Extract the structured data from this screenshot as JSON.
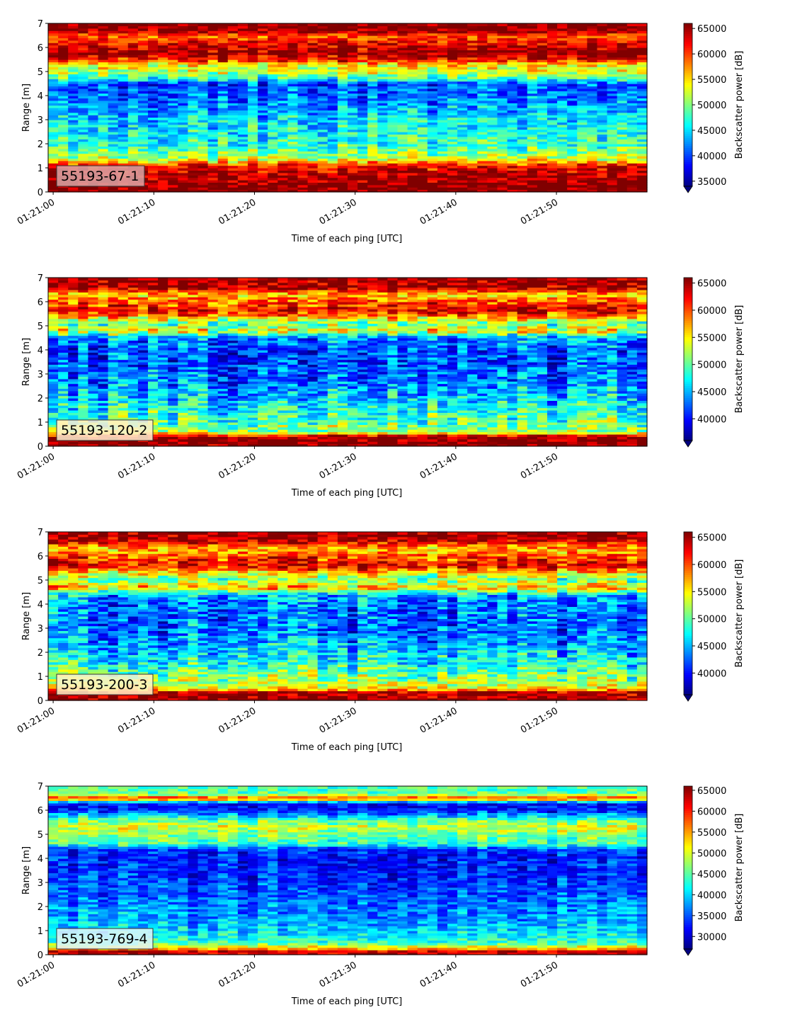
{
  "chart_data": [
    {
      "type": "heatmap",
      "panel_label": "55193-67-1",
      "xlabel": "Time of each ping [UTC]",
      "ylabel": "Range [m]",
      "x_ticks": [
        "01:21:00",
        "01:21:10",
        "01:21:20",
        "01:21:30",
        "01:21:40",
        "01:21:50"
      ],
      "x_range_seconds": [
        -0.5,
        59
      ],
      "ylim": [
        0,
        7
      ],
      "y_ticks": [
        0,
        1,
        2,
        3,
        4,
        5,
        6,
        7
      ],
      "colorbar": {
        "label": "Backscatter power [dB]",
        "vmin": 34000,
        "vmax": 66000,
        "ticks": [
          35000,
          40000,
          45000,
          50000,
          55000,
          60000,
          65000
        ],
        "extend": "min"
      },
      "profile": [
        [
          0.0,
          66000
        ],
        [
          0.2,
          66000
        ],
        [
          0.8,
          64000
        ],
        [
          1.1,
          62000
        ],
        [
          1.3,
          54000
        ],
        [
          1.6,
          50000
        ],
        [
          2.0,
          47000
        ],
        [
          2.5,
          46000
        ],
        [
          3.0,
          45000
        ],
        [
          3.5,
          43000
        ],
        [
          4.0,
          41000
        ],
        [
          4.5,
          40000
        ],
        [
          4.7,
          47000
        ],
        [
          5.0,
          52000
        ],
        [
          5.3,
          54000
        ],
        [
          5.5,
          62000
        ],
        [
          5.8,
          65500
        ],
        [
          6.2,
          62000
        ],
        [
          6.5,
          59000
        ],
        [
          6.7,
          65500
        ],
        [
          7.0,
          66000
        ]
      ],
      "label_bg": "#dca6a6",
      "noise": 5500
    },
    {
      "type": "heatmap",
      "panel_label": "55193-120-2",
      "xlabel": "Time of each ping [UTC]",
      "ylabel": "Range [m]",
      "x_ticks": [
        "01:21:00",
        "01:21:10",
        "01:21:20",
        "01:21:30",
        "01:21:40",
        "01:21:50"
      ],
      "x_range_seconds": [
        -0.5,
        59
      ],
      "ylim": [
        0,
        7
      ],
      "y_ticks": [
        0,
        1,
        2,
        3,
        4,
        5,
        6,
        7
      ],
      "colorbar": {
        "label": "Backscatter power [dB]",
        "vmin": 36000,
        "vmax": 66000,
        "ticks": [
          40000,
          45000,
          50000,
          55000,
          60000,
          65000
        ],
        "extend": "min"
      },
      "profile": [
        [
          0.0,
          66000
        ],
        [
          0.4,
          66000
        ],
        [
          0.6,
          52000
        ],
        [
          1.0,
          50000
        ],
        [
          1.5,
          48000
        ],
        [
          2.0,
          46000
        ],
        [
          2.5,
          44000
        ],
        [
          3.0,
          43000
        ],
        [
          3.5,
          42000
        ],
        [
          4.0,
          42000
        ],
        [
          4.5,
          44000
        ],
        [
          4.8,
          55000
        ],
        [
          5.1,
          50000
        ],
        [
          5.3,
          55000
        ],
        [
          5.6,
          63000
        ],
        [
          6.0,
          60000
        ],
        [
          6.3,
          56000
        ],
        [
          6.6,
          65000
        ],
        [
          7.0,
          65000
        ]
      ],
      "label_bg": "#fff0d0",
      "noise": 6000
    },
    {
      "type": "heatmap",
      "panel_label": "55193-200-3",
      "xlabel": "Time of each ping [UTC]",
      "ylabel": "Range [m]",
      "x_ticks": [
        "01:21:00",
        "01:21:10",
        "01:21:20",
        "01:21:30",
        "01:21:40",
        "01:21:50"
      ],
      "x_range_seconds": [
        -0.5,
        59
      ],
      "ylim": [
        0,
        7
      ],
      "y_ticks": [
        0,
        1,
        2,
        3,
        4,
        5,
        6,
        7
      ],
      "colorbar": {
        "label": "Backscatter power [dB]",
        "vmin": 36000,
        "vmax": 66000,
        "ticks": [
          40000,
          45000,
          50000,
          55000,
          60000,
          65000
        ],
        "extend": "min"
      },
      "profile": [
        [
          0.0,
          66000
        ],
        [
          0.35,
          64000
        ],
        [
          0.5,
          55000
        ],
        [
          1.0,
          51000
        ],
        [
          1.5,
          48000
        ],
        [
          2.0,
          46000
        ],
        [
          2.5,
          44000
        ],
        [
          3.0,
          43000
        ],
        [
          3.5,
          43000
        ],
        [
          4.0,
          43000
        ],
        [
          4.4,
          45000
        ],
        [
          4.7,
          57000
        ],
        [
          5.0,
          51000
        ],
        [
          5.3,
          55000
        ],
        [
          5.6,
          63000
        ],
        [
          6.0,
          60000
        ],
        [
          6.3,
          56000
        ],
        [
          6.7,
          65000
        ],
        [
          7.0,
          65000
        ]
      ],
      "label_bg": "#fff2c8",
      "noise": 6000
    },
    {
      "type": "heatmap",
      "panel_label": "55193-769-4",
      "xlabel": "Time of each ping [UTC]",
      "ylabel": "Range [m]",
      "x_ticks": [
        "01:21:00",
        "01:21:10",
        "01:21:20",
        "01:21:30",
        "01:21:40",
        "01:21:50"
      ],
      "x_range_seconds": [
        -0.5,
        59
      ],
      "ylim": [
        0,
        7
      ],
      "y_ticks": [
        0,
        1,
        2,
        3,
        4,
        5,
        6,
        7
      ],
      "colorbar": {
        "label": "Backscatter power [dB]",
        "vmin": 27000,
        "vmax": 66000,
        "ticks": [
          30000,
          35000,
          40000,
          45000,
          50000,
          55000,
          60000,
          65000
        ],
        "extend": "min"
      },
      "profile": [
        [
          0.0,
          60000
        ],
        [
          0.1,
          66000
        ],
        [
          0.25,
          55000
        ],
        [
          0.5,
          44000
        ],
        [
          1.0,
          40000
        ],
        [
          1.5,
          38000
        ],
        [
          2.0,
          37000
        ],
        [
          2.5,
          35000
        ],
        [
          3.0,
          34000
        ],
        [
          3.5,
          33000
        ],
        [
          4.0,
          33000
        ],
        [
          4.4,
          34000
        ],
        [
          4.6,
          44000
        ],
        [
          5.0,
          46000
        ],
        [
          5.3,
          50000
        ],
        [
          5.6,
          45000
        ],
        [
          6.0,
          33000
        ],
        [
          6.3,
          32000
        ],
        [
          6.5,
          60000
        ],
        [
          6.7,
          45000
        ],
        [
          7.0,
          44000
        ]
      ],
      "label_bg": "#e2f3fa",
      "noise": 5500
    }
  ]
}
